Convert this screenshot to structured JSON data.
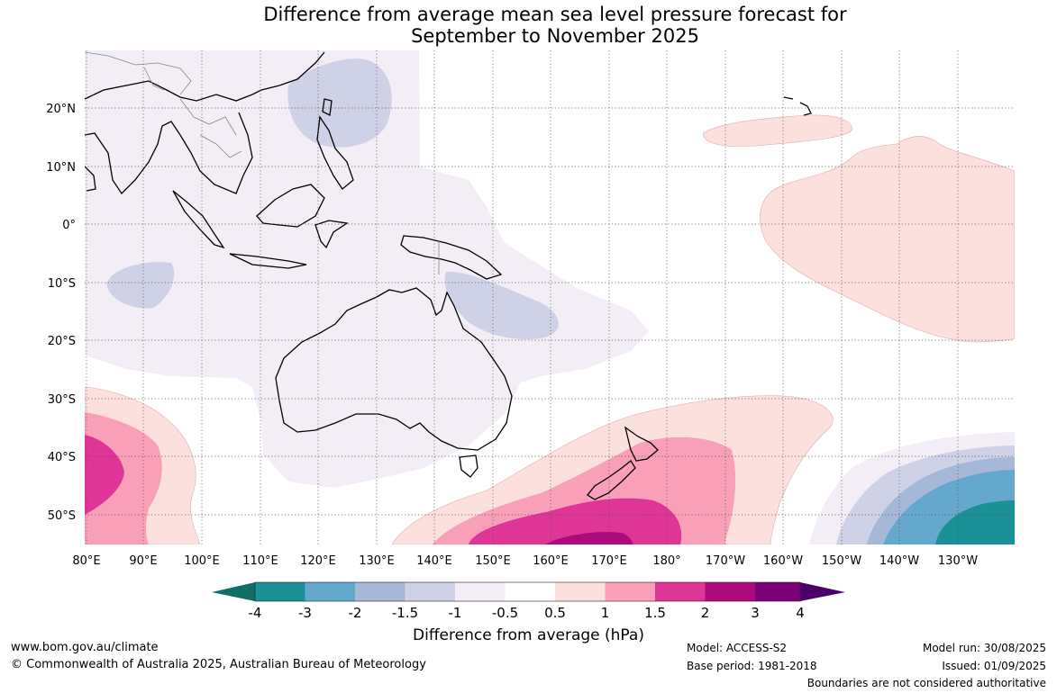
{
  "title": {
    "line1": "Difference from average mean sea level pressure forecast for",
    "line2": "September to November 2025"
  },
  "map": {
    "lat_labels": [
      "20°N",
      "10°N",
      "0°",
      "10°S",
      "20°S",
      "30°S",
      "40°S",
      "50°S"
    ],
    "lon_labels": [
      "80°E",
      "90°E",
      "100°E",
      "110°E",
      "120°E",
      "130°E",
      "140°E",
      "150°E",
      "160°E",
      "170°E",
      "180°",
      "170°W",
      "160°W",
      "150°W",
      "140°W",
      "130°W"
    ]
  },
  "legend": {
    "title": "Difference from average (hPa)",
    "tick_labels": [
      "-4",
      "-3",
      "-2",
      "-1.5",
      "-1",
      "-0.5",
      "0.5",
      "1",
      "1.5",
      "2",
      "3",
      "4"
    ],
    "colors": [
      "#106e64",
      "#1a9097",
      "#65a8cd",
      "#a6b8d8",
      "#cfd1e6",
      "#f3edf5",
      "#ffffff",
      "#fce0dd",
      "#f99fb8",
      "#de3597",
      "#ad0a80",
      "#7a0177",
      "#4a006a"
    ]
  },
  "footer": {
    "website": "www.bom.gov.au/climate",
    "copyright": "© Commonwealth of Australia 2025, Australian Bureau of Meteorology",
    "model": "Model: ACCESS-S2",
    "base_period": "Base period: 1981-2018",
    "model_run": "Model run: 30/08/2025",
    "issued": "Issued: 01/09/2025",
    "disclaimer": "Boundaries are not considered authoritative"
  }
}
